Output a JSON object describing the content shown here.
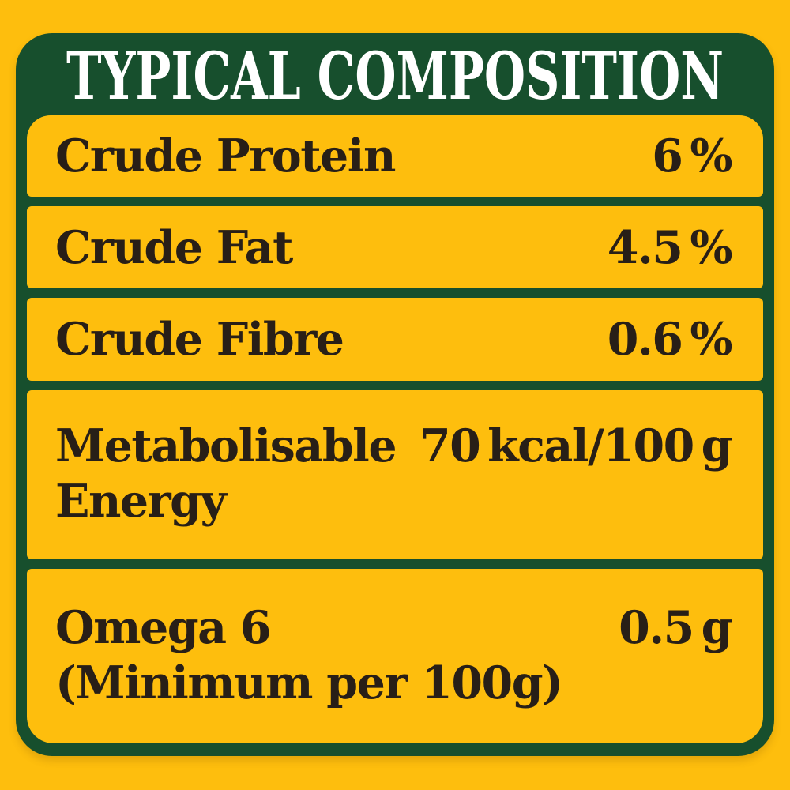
{
  "colors": {
    "background_yellow": "#FEBE0D",
    "panel_green": "#174F2D",
    "row_yellow": "#FEBE0D",
    "title_color": "#FFFFFF",
    "text_color": "#281F17"
  },
  "header": {
    "title": "TYPICAL COMPOSITION"
  },
  "table": {
    "rows": [
      {
        "label": "Crude Protein",
        "label_lines": [
          "Crude Protein"
        ],
        "value": "6 %"
      },
      {
        "label": "Crude Fat",
        "label_lines": [
          "Crude Fat"
        ],
        "value": "4.5 %"
      },
      {
        "label": "Crude Fibre",
        "label_lines": [
          "Crude Fibre"
        ],
        "value": "0.6 %"
      },
      {
        "label": "Metabolisable Energy",
        "label_lines": [
          "Metabolisable",
          "Energy"
        ],
        "value": "70 kcal/100 g"
      },
      {
        "label": "Omega 6 (Minimum per 100g)",
        "label_lines": [
          "Omega 6",
          "(Minimum per 100g)"
        ],
        "value": "0.5 g"
      }
    ]
  }
}
